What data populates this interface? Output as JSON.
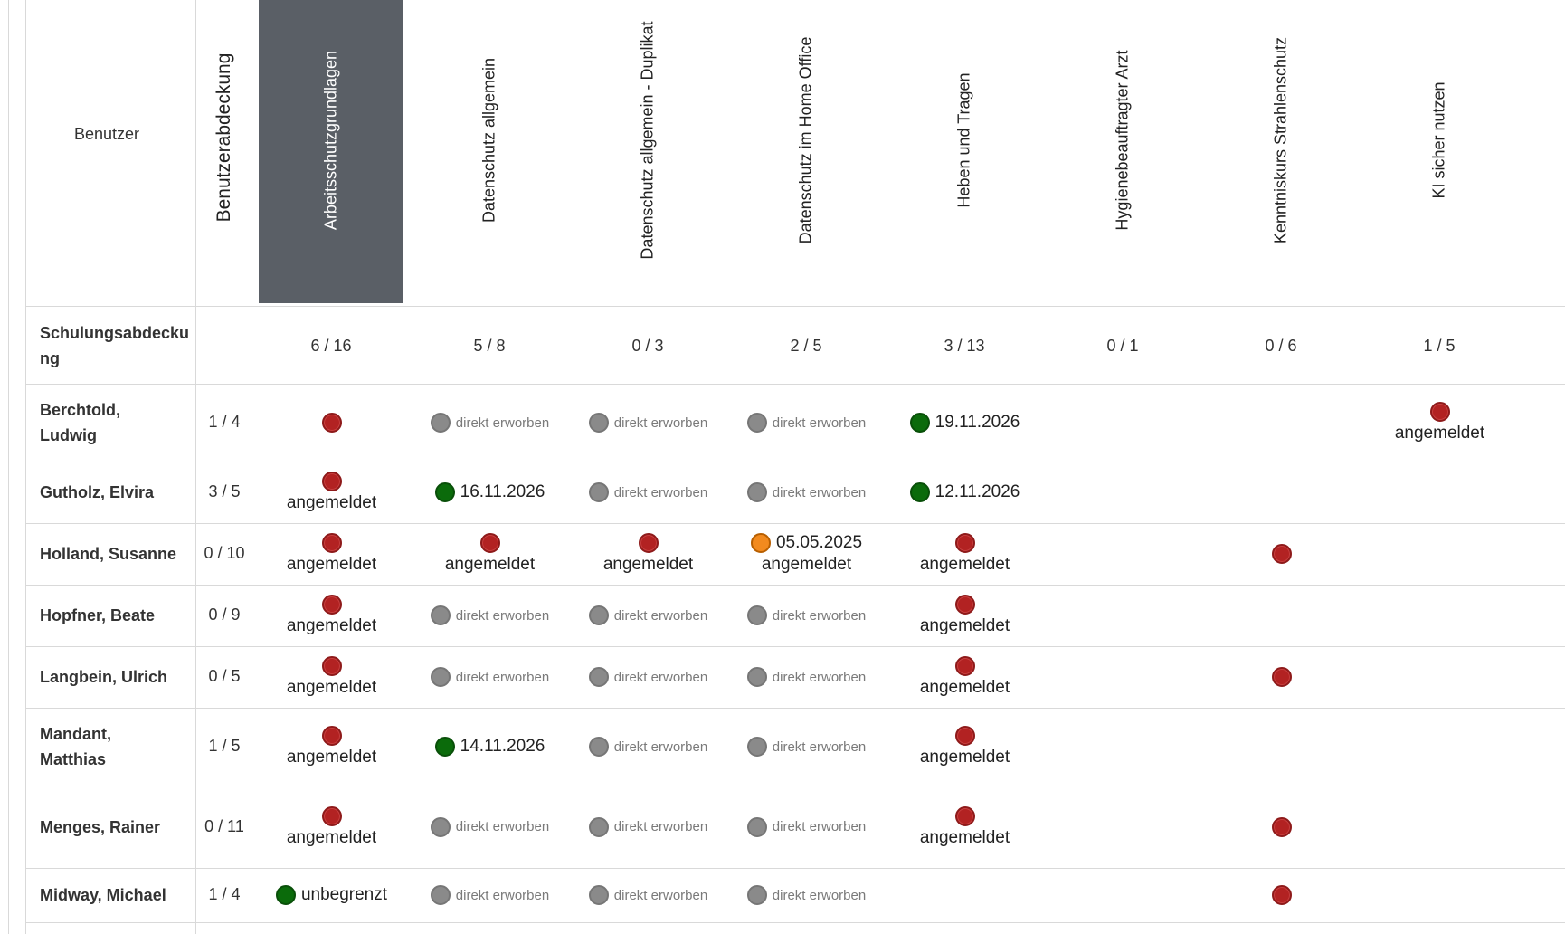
{
  "header": {
    "user_col": "Benutzer",
    "coverage_col": "Benutzerabdeckung",
    "training_coverage": "Schulungsabdecku ng"
  },
  "courses": [
    {
      "title": "Arbeitsschutzgrundlagen",
      "count": "6 / 16",
      "active": true
    },
    {
      "title": "Datenschutz allgemein",
      "count": "5 / 8"
    },
    {
      "title": "Datenschutz allgemein - Duplikat",
      "count": "0 / 3"
    },
    {
      "title": "Datenschutz im Home Office",
      "count": "2 / 5"
    },
    {
      "title": "Heben und Tragen",
      "count": "3 / 13"
    },
    {
      "title": "Hygienebeauftragter Arzt",
      "count": "0 / 1"
    },
    {
      "title": "Kenntniskurs Strahlenschutz",
      "count": "0 / 6"
    },
    {
      "title": "KI sicher nutzen",
      "count": "1 / 5"
    }
  ],
  "labels": {
    "direct": "direkt erworben",
    "registered": "angemeldet"
  },
  "users": [
    {
      "name_line1": "Berchtold,",
      "name_line2": "Ludwig",
      "coverage": "1 / 4",
      "cells": [
        {
          "dot": "red"
        },
        {
          "dot": "grey",
          "text": "direkt erworben",
          "kind": "direct"
        },
        {
          "dot": "grey",
          "text": "direkt erworben",
          "kind": "direct"
        },
        {
          "dot": "grey",
          "text": "direkt erworben",
          "kind": "direct"
        },
        {
          "dot": "green",
          "text": "19.11.2026",
          "kind": "date"
        },
        null,
        null,
        {
          "dot": "red",
          "below": "angemeldet"
        }
      ]
    },
    {
      "name_line1": "Gutholz, Elvira",
      "coverage": "3 / 5",
      "cells": [
        {
          "dot": "red",
          "below": "angemeldet"
        },
        {
          "dot": "green",
          "text": "16.11.2026",
          "kind": "date"
        },
        {
          "dot": "grey",
          "text": "direkt erworben",
          "kind": "direct"
        },
        {
          "dot": "grey",
          "text": "direkt erworben",
          "kind": "direct"
        },
        {
          "dot": "green",
          "text": "12.11.2026",
          "kind": "date"
        },
        null,
        null,
        null
      ]
    },
    {
      "name_line1": "Holland, Susanne",
      "coverage": "0 / 10",
      "cells": [
        {
          "dot": "red",
          "below": "angemeldet"
        },
        {
          "dot": "red",
          "below": "angemeldet"
        },
        {
          "dot": "red",
          "below": "angemeldet"
        },
        {
          "dot": "orange",
          "text": "05.05.2025",
          "kind": "date",
          "below": "angemeldet"
        },
        {
          "dot": "red",
          "below": "angemeldet"
        },
        null,
        {
          "dot": "red"
        },
        null
      ]
    },
    {
      "name_line1": "Hopfner, Beate",
      "coverage": "0 / 9",
      "cells": [
        {
          "dot": "red",
          "below": "angemeldet"
        },
        {
          "dot": "grey",
          "text": "direkt erworben",
          "kind": "direct"
        },
        {
          "dot": "grey",
          "text": "direkt erworben",
          "kind": "direct"
        },
        {
          "dot": "grey",
          "text": "direkt erworben",
          "kind": "direct"
        },
        {
          "dot": "red",
          "below": "angemeldet"
        },
        null,
        null,
        null
      ]
    },
    {
      "name_line1": "Langbein, Ulrich",
      "coverage": "0 / 5",
      "cells": [
        {
          "dot": "red",
          "below": "angemeldet"
        },
        {
          "dot": "grey",
          "text": "direkt erworben",
          "kind": "direct"
        },
        {
          "dot": "grey",
          "text": "direkt erworben",
          "kind": "direct"
        },
        {
          "dot": "grey",
          "text": "direkt erworben",
          "kind": "direct"
        },
        {
          "dot": "red",
          "below": "angemeldet"
        },
        null,
        {
          "dot": "red"
        },
        null
      ]
    },
    {
      "name_line1": "Mandant,",
      "name_line2": "Matthias",
      "coverage": "1 / 5",
      "cells": [
        {
          "dot": "red",
          "below": "angemeldet"
        },
        {
          "dot": "green",
          "text": "14.11.2026",
          "kind": "date"
        },
        {
          "dot": "grey",
          "text": "direkt erworben",
          "kind": "direct"
        },
        {
          "dot": "grey",
          "text": "direkt erworben",
          "kind": "direct"
        },
        {
          "dot": "red",
          "below": "angemeldet"
        },
        null,
        null,
        null
      ]
    },
    {
      "name_line1": "Menges, Rainer",
      "coverage": "0 / 11",
      "cells": [
        {
          "dot": "red",
          "below": "angemeldet"
        },
        {
          "dot": "grey",
          "text": "direkt erworben",
          "kind": "direct"
        },
        {
          "dot": "grey",
          "text": "direkt erworben",
          "kind": "direct"
        },
        {
          "dot": "grey",
          "text": "direkt erworben",
          "kind": "direct"
        },
        {
          "dot": "red",
          "below": "angemeldet"
        },
        null,
        {
          "dot": "red"
        },
        null
      ]
    },
    {
      "name_line1": "Midway, Michael",
      "coverage": "1 / 4",
      "cells": [
        {
          "dot": "green",
          "text": "unbegrenzt",
          "kind": "date"
        },
        {
          "dot": "grey",
          "text": "direkt erworben",
          "kind": "direct"
        },
        {
          "dot": "grey",
          "text": "direkt erworben",
          "kind": "direct"
        },
        {
          "dot": "grey",
          "text": "direkt erworben",
          "kind": "direct"
        },
        null,
        null,
        {
          "dot": "red"
        },
        null
      ]
    }
  ],
  "colors": {
    "active_header_bg": "#5a5f66",
    "status_red": "#b22222",
    "status_green": "#0b6b0b",
    "status_grey": "#8a8a8a",
    "status_orange": "#f28a1e"
  }
}
